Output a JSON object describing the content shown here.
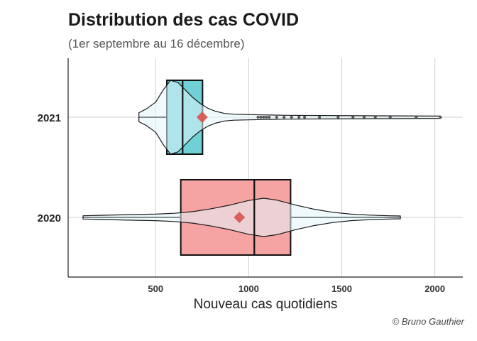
{
  "title": "Distribution des cas COVID",
  "subtitle": "(1er septembre au 16 décembre)",
  "caption": "© Bruno Gauthier",
  "chart_data": {
    "type": "violin-box",
    "title": "Distribution des cas COVID",
    "subtitle": "(1er septembre au 16 décembre)",
    "xlabel": "Nouveau cas quotidiens",
    "ylabel": "",
    "xlim": [
      30,
      2150
    ],
    "xticks": [
      500,
      1000,
      1500,
      2000
    ],
    "categories": [
      "2021",
      "2020"
    ],
    "grid": true,
    "legend": "none",
    "series": [
      {
        "name": "2021",
        "fill": "#6fd0d6",
        "violin_fill": "#e4f5fb",
        "mean_color": "#d9534f",
        "box": {
          "q1": 560,
          "median": 645,
          "q3": 752,
          "whisker_low": 410,
          "whisker_high": 752
        },
        "mean": 750,
        "range": [
          410,
          2030
        ],
        "density": [
          [
            410,
            0.12
          ],
          [
            450,
            0.22
          ],
          [
            500,
            0.4
          ],
          [
            540,
            0.72
          ],
          [
            580,
            0.98
          ],
          [
            620,
            0.92
          ],
          [
            660,
            0.72
          ],
          [
            700,
            0.52
          ],
          [
            740,
            0.36
          ],
          [
            780,
            0.24
          ],
          [
            820,
            0.16
          ],
          [
            870,
            0.1
          ],
          [
            920,
            0.08
          ],
          [
            1000,
            0.07
          ],
          [
            1100,
            0.06
          ],
          [
            1200,
            0.05
          ],
          [
            1400,
            0.045
          ],
          [
            1600,
            0.04
          ],
          [
            1800,
            0.035
          ],
          [
            2030,
            0.03
          ]
        ],
        "outliers": [
          1050,
          1065,
          1080,
          1095,
          1110,
          1150,
          1190,
          1230,
          1270,
          1300,
          1380,
          1480,
          1560,
          1620,
          1680,
          1760,
          1900,
          2030
        ]
      },
      {
        "name": "2020",
        "fill": "#f5a3a3",
        "violin_fill": "#e4f5fb",
        "mean_color": "#d9534f",
        "box": {
          "q1": 635,
          "median": 1030,
          "q3": 1225,
          "whisker_low": 110,
          "whisker_high": 1815
        },
        "mean": 950,
        "range": [
          110,
          1815
        ],
        "density": [
          [
            110,
            0.08
          ],
          [
            200,
            0.1
          ],
          [
            300,
            0.12
          ],
          [
            400,
            0.14
          ],
          [
            500,
            0.16
          ],
          [
            600,
            0.2
          ],
          [
            700,
            0.28
          ],
          [
            800,
            0.42
          ],
          [
            900,
            0.6
          ],
          [
            1000,
            0.82
          ],
          [
            1080,
            0.93
          ],
          [
            1150,
            0.84
          ],
          [
            1250,
            0.6
          ],
          [
            1350,
            0.4
          ],
          [
            1450,
            0.25
          ],
          [
            1550,
            0.16
          ],
          [
            1650,
            0.11
          ],
          [
            1750,
            0.08
          ],
          [
            1815,
            0.07
          ]
        ],
        "outliers": []
      }
    ]
  }
}
